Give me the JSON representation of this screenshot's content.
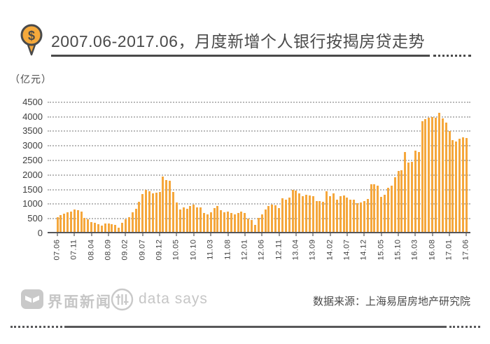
{
  "title": {
    "text": "2007.06-2017.06，月度新增个人银行按揭房贷走势",
    "icon": "dollar-pin-icon",
    "icon_symbol": "$"
  },
  "y_axis": {
    "unit_label": "（亿元）",
    "ticks": [
      0,
      500,
      1000,
      1500,
      2000,
      2500,
      3000,
      3500,
      4000,
      4500
    ]
  },
  "footer": {
    "brand_left": "界面新闻",
    "brand_right": "data says",
    "source": "数据来源：上海易居房地产研究院"
  },
  "colors": {
    "bar": "#f5a73c",
    "axis": "#55565a",
    "grid": "#b9b9b9",
    "title_text": "#4a4a4a",
    "footer_gray": "#c6c6c6",
    "icon_fill": "#f5a93b"
  },
  "chart_data": {
    "type": "bar",
    "title": "2007.06-2017.06，月度新增个人银行按揭房贷走势",
    "ylabel": "亿元",
    "ylim": [
      0,
      4500
    ],
    "grid": true,
    "x_tick_labels": [
      "07.06",
      "07.11",
      "08.04",
      "08.09",
      "09.02",
      "09.07",
      "09.12",
      "10.05",
      "10.10",
      "11.03",
      "11.08",
      "12.01",
      "12.06",
      "12.11",
      "13.04",
      "13.09",
      "14.02",
      "14.07",
      "14.12",
      "15.05",
      "15.10",
      "16.03",
      "16.08",
      "17.01",
      "17.06"
    ],
    "x_tick_every": 5,
    "x": [
      "07.06",
      "07.07",
      "07.08",
      "07.09",
      "07.10",
      "07.11",
      "07.12",
      "08.01",
      "08.02",
      "08.03",
      "08.04",
      "08.05",
      "08.06",
      "08.07",
      "08.08",
      "08.09",
      "08.10",
      "08.11",
      "08.12",
      "09.01",
      "09.02",
      "09.03",
      "09.04",
      "09.05",
      "09.06",
      "09.07",
      "09.08",
      "09.09",
      "09.10",
      "09.11",
      "09.12",
      "10.01",
      "10.02",
      "10.03",
      "10.04",
      "10.05",
      "10.06",
      "10.07",
      "10.08",
      "10.09",
      "10.10",
      "10.11",
      "10.12",
      "11.01",
      "11.02",
      "11.03",
      "11.04",
      "11.05",
      "11.06",
      "11.07",
      "11.08",
      "11.09",
      "11.10",
      "11.11",
      "11.12",
      "12.01",
      "12.02",
      "12.03",
      "12.04",
      "12.05",
      "12.06",
      "12.07",
      "12.08",
      "12.09",
      "12.10",
      "12.11",
      "12.12",
      "13.01",
      "13.02",
      "13.03",
      "13.04",
      "13.05",
      "13.06",
      "13.07",
      "13.08",
      "13.09",
      "13.10",
      "13.11",
      "13.12",
      "14.01",
      "14.02",
      "14.03",
      "14.04",
      "14.05",
      "14.06",
      "14.07",
      "14.08",
      "14.09",
      "14.10",
      "14.11",
      "14.12",
      "15.01",
      "15.02",
      "15.03",
      "15.04",
      "15.05",
      "15.06",
      "15.07",
      "15.08",
      "15.09",
      "15.10",
      "15.11",
      "15.12",
      "16.01",
      "16.02",
      "16.03",
      "16.04",
      "16.05",
      "16.06",
      "16.07",
      "16.08",
      "16.09",
      "16.10",
      "16.11",
      "16.12",
      "17.01",
      "17.02",
      "17.03",
      "17.04",
      "17.05",
      "17.06"
    ],
    "values": [
      510,
      580,
      620,
      670,
      700,
      780,
      750,
      700,
      480,
      440,
      340,
      320,
      260,
      220,
      300,
      280,
      260,
      230,
      140,
      320,
      440,
      500,
      680,
      800,
      1040,
      1300,
      1440,
      1400,
      1320,
      1340,
      1360,
      1900,
      1780,
      1760,
      1360,
      1000,
      780,
      840,
      800,
      900,
      940,
      840,
      840,
      640,
      600,
      680,
      820,
      880,
      745,
      680,
      700,
      640,
      600,
      640,
      700,
      640,
      460,
      420,
      240,
      480,
      600,
      760,
      900,
      945,
      920,
      825,
      1145,
      1105,
      1185,
      1440,
      1420,
      1320,
      1225,
      1265,
      1240,
      1225,
      1065,
      1065,
      1040,
      1385,
      1225,
      1330,
      1100,
      1225,
      1240,
      1180,
      1100,
      1100,
      985,
      1020,
      1065,
      1120,
      1625,
      1640,
      1580,
      1200,
      1280,
      1520,
      1580,
      1880,
      2080,
      2110,
      2740,
      2380,
      2400,
      2780,
      2730,
      3800,
      3870,
      3920,
      3940,
      3920,
      4080,
      3890,
      3750,
      3470,
      3150,
      3100,
      3200,
      3250,
      3220
    ]
  }
}
